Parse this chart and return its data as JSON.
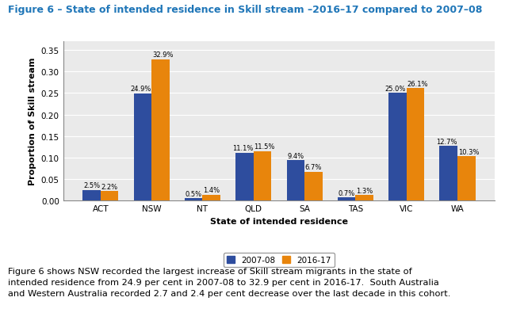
{
  "title": "Figure 6 – State of intended residence in Skill stream –2016–17 compared to 2007–08",
  "categories": [
    "ACT",
    "NSW",
    "NT",
    "QLD",
    "SA",
    "TAS",
    "VIC",
    "WA"
  ],
  "values_2007": [
    0.025,
    0.249,
    0.005,
    0.111,
    0.094,
    0.007,
    0.25,
    0.127
  ],
  "values_2016": [
    0.022,
    0.329,
    0.014,
    0.115,
    0.067,
    0.013,
    0.261,
    0.103
  ],
  "labels_2007": [
    "2.5%",
    "24.9%",
    "0.5%",
    "11.1%",
    "9.4%",
    "0.7%",
    "25.0%",
    "12.7%"
  ],
  "labels_2016": [
    "2.2%",
    "32.9%",
    "1.4%",
    "11.5%",
    "6.7%",
    "1.3%",
    "26.1%",
    "10.3%"
  ],
  "color_2007": "#2E4D9E",
  "color_2016": "#E8850C",
  "xlabel": "State of intended residence",
  "ylabel": "Proportion of Skill stream",
  "ylim": [
    0,
    0.37
  ],
  "yticks": [
    0.0,
    0.05,
    0.1,
    0.15,
    0.2,
    0.25,
    0.3,
    0.35
  ],
  "legend_labels": [
    "2007-08",
    "2016-17"
  ],
  "title_color": "#1F76B8",
  "title_fontsize": 9.0,
  "axis_label_fontsize": 8.0,
  "tick_fontsize": 7.5,
  "bar_label_fontsize": 6.0,
  "caption": "Figure 6 shows NSW recorded the largest increase of Skill stream migrants in the state of\nintended residence from 24.9 per cent in 2007-08 to 32.9 per cent in 2016-17.  South Australia\nand Western Australia recorded 2.7 and 2.4 per cent decrease over the last decade in this cohort.",
  "caption_fontsize": 8.2,
  "background_color": "#EAEAEA"
}
